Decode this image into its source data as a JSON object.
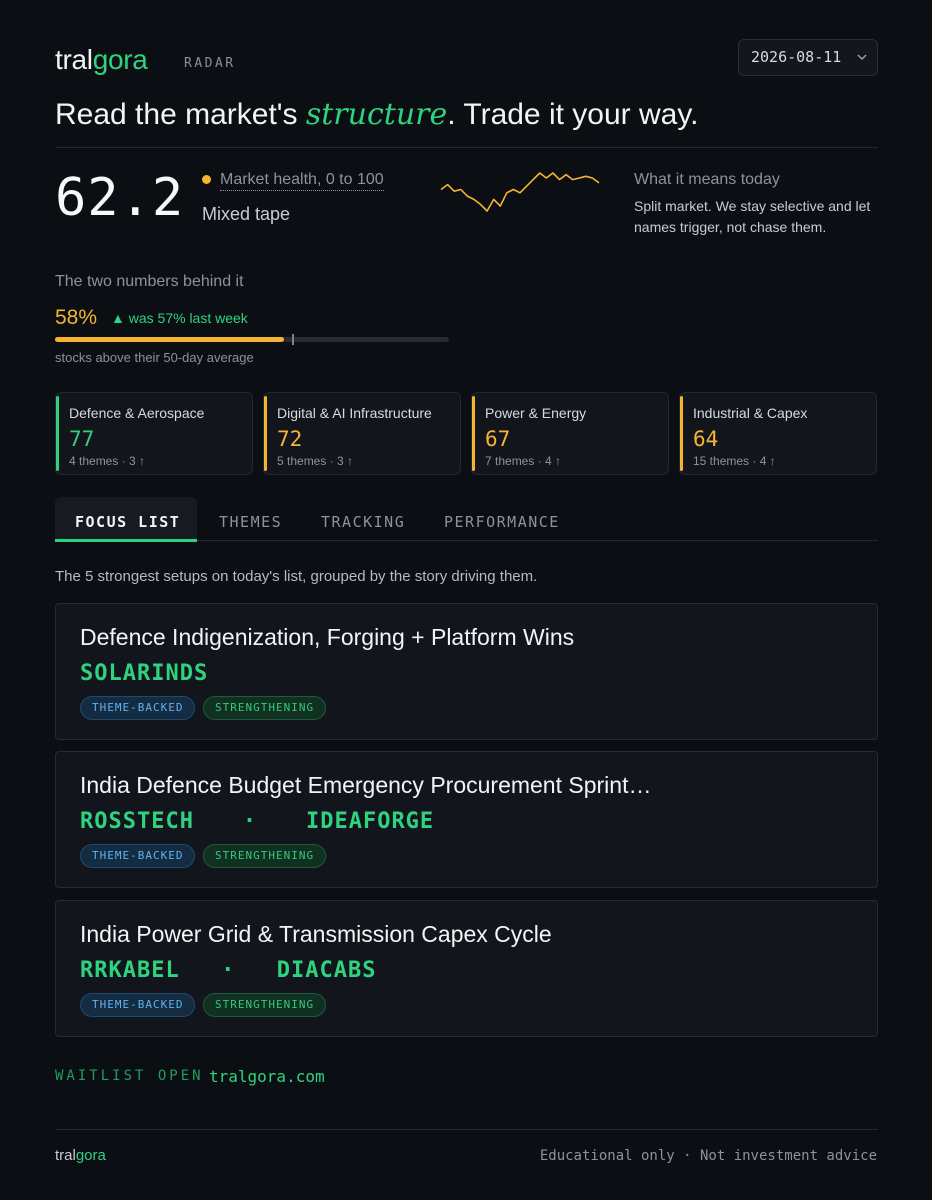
{
  "brand": {
    "part1": "tral",
    "part2": "gora",
    "product": "RADAR"
  },
  "date_selector": {
    "value": "2026-08-11",
    "icon": "chevron-down-icon"
  },
  "headline": {
    "before": "Read the market's ",
    "emphasis": "structure",
    "after": ". Trade it your way."
  },
  "health": {
    "score": "62.2",
    "label": "Market health, 0 to 100",
    "state": "Mixed tape",
    "sparkline": [
      58,
      61,
      57,
      58,
      54,
      52,
      49,
      45,
      52,
      48,
      56,
      58,
      56,
      60,
      64,
      68,
      65,
      68,
      64,
      67,
      64,
      65,
      66,
      65,
      62
    ]
  },
  "meaning": {
    "title": "What it means today",
    "text": "Split market. We stay selective and let names trigger, not chase them."
  },
  "breadth": {
    "title": "The two numbers behind it",
    "value_text": "58%",
    "value": 0.58,
    "previous": 0.57,
    "trend_arrow": "▲",
    "trend_text": "was 57% last week",
    "caption": "stocks above their 50-day average"
  },
  "sectors": [
    {
      "name": "Defence & Aerospace",
      "score": "77",
      "meta": "4 themes · 3 ↑",
      "color": "#2fd37f"
    },
    {
      "name": "Digital & AI Infrastructure",
      "score": "72",
      "meta": "5 themes · 3 ↑",
      "color": "#f6b431"
    },
    {
      "name": "Power & Energy",
      "score": "67",
      "meta": "7 themes · 4 ↑",
      "color": "#f6b431"
    },
    {
      "name": "Industrial & Capex",
      "score": "64",
      "meta": "15 themes · 4 ↑",
      "color": "#f6b431"
    }
  ],
  "tabs": [
    {
      "label": "FOCUS LIST",
      "active": true
    },
    {
      "label": "THEMES",
      "active": false
    },
    {
      "label": "TRACKING",
      "active": false
    },
    {
      "label": "PERFORMANCE",
      "active": false
    }
  ],
  "focus_subtitle": "The 5 strongest setups on today's list, grouped by the story driving them.",
  "setups": [
    {
      "title": "Defence Indigenization, Forging + Platform Wins",
      "tickers": [
        "SOLARINDS"
      ],
      "tags": [
        "THEME-BACKED",
        "STRENGTHENING"
      ]
    },
    {
      "title": "India Defence Budget Emergency Procurement Sprint…",
      "tickers": [
        "ROSSTECH",
        "IDEAFORGE"
      ],
      "tags": [
        "THEME-BACKED",
        "STRENGTHENING"
      ]
    },
    {
      "title": "India Power Grid & Transmission Capex Cycle",
      "tickers": [
        "RRKABEL",
        "DIACABS"
      ],
      "tags": [
        "THEME-BACKED",
        "STRENGTHENING"
      ]
    }
  ],
  "ticker_separator": "·",
  "waitlist": {
    "label": "WAITLIST OPEN",
    "link": "tralgora.com"
  },
  "footer": {
    "brand1": "tral",
    "brand2": "gora",
    "disclaimer": "Educational only · Not investment advice"
  },
  "colors": {
    "accent": "#2fd37f",
    "amber": "#f6b431",
    "background": "#0b0e13"
  }
}
